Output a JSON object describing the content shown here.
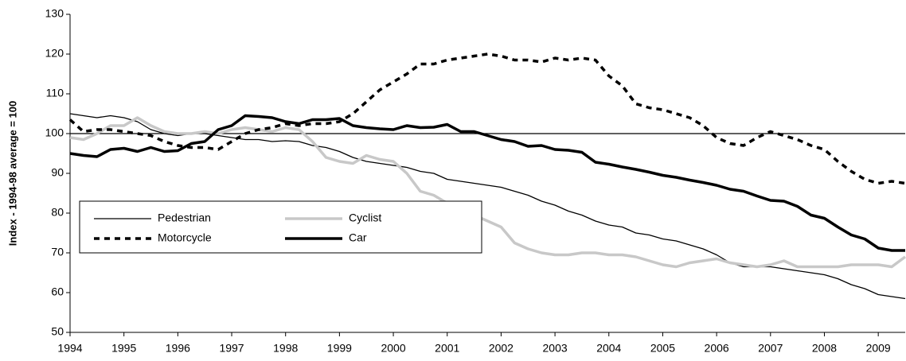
{
  "chart_data": {
    "type": "line",
    "y_label": "Index - 1994-98 average = 100",
    "x": [
      1994,
      1994.25,
      1994.5,
      1994.75,
      1995,
      1995.25,
      1995.5,
      1995.75,
      1996,
      1996.25,
      1996.5,
      1996.75,
      1997,
      1997.25,
      1997.5,
      1997.75,
      1998,
      1998.25,
      1998.5,
      1998.75,
      1999,
      1999.25,
      1999.5,
      1999.75,
      2000,
      2000.25,
      2000.5,
      2000.75,
      2001,
      2001.25,
      2001.5,
      2001.75,
      2002,
      2002.25,
      2002.5,
      2002.75,
      2003,
      2003.25,
      2003.5,
      2003.75,
      2004,
      2004.25,
      2004.5,
      2004.75,
      2005,
      2005.25,
      2005.5,
      2005.75,
      2006,
      2006.25,
      2006.5,
      2006.75,
      2007,
      2007.25,
      2007.5,
      2007.75,
      2008,
      2008.25,
      2008.5,
      2008.75,
      2009,
      2009.25,
      2009.5
    ],
    "series": [
      {
        "name": "Pedestrian",
        "color": "#000000",
        "style": "thin",
        "values": [
          105,
          104.5,
          104,
          104.5,
          104,
          103,
          101,
          100,
          99.5,
          100,
          100,
          99.5,
          99,
          98.5,
          98.5,
          98,
          98.2,
          98,
          97,
          96.5,
          95.5,
          94,
          93,
          92.5,
          92,
          91.5,
          90.5,
          90,
          88.5,
          88,
          87.5,
          87,
          86.5,
          85.5,
          84.5,
          83,
          82,
          80.5,
          79.5,
          78,
          77,
          76.5,
          75,
          74.5,
          73.5,
          73,
          72,
          71,
          69.5,
          67.5,
          66.5,
          66.5,
          66.5,
          66,
          65.5,
          65,
          64.5,
          63.5,
          62,
          61,
          59.5,
          59,
          58.5
        ]
      },
      {
        "name": "Cyclist",
        "color": "#c8c8c8",
        "style": "thick",
        "values": [
          99,
          98.5,
          100,
          102,
          102,
          104,
          102,
          100.5,
          100,
          100,
          100.5,
          100,
          101,
          101.5,
          101,
          100.5,
          101.5,
          101,
          98,
          94,
          93,
          92.5,
          94.5,
          93.5,
          93,
          90,
          85.5,
          84.5,
          82.5,
          82,
          79.5,
          78,
          76.5,
          72.5,
          71,
          70,
          69.5,
          69.5,
          70,
          70,
          69.5,
          69.5,
          69,
          68,
          67,
          66.5,
          67.5,
          68,
          68.5,
          67.5,
          67,
          66.5,
          67,
          68,
          66.5,
          66.5,
          66.5,
          66.5,
          67,
          67,
          67,
          66.5,
          69
        ]
      },
      {
        "name": "Motorcycle",
        "color": "#000000",
        "style": "dashed",
        "values": [
          103.5,
          100.5,
          101,
          101,
          100.5,
          100,
          99.5,
          98,
          97,
          96.5,
          96.5,
          96,
          98,
          100,
          101,
          101.5,
          102.5,
          102,
          102.5,
          102.5,
          103,
          105,
          108,
          111,
          113,
          115,
          117.5,
          117.5,
          118.5,
          119,
          119.5,
          120,
          119.5,
          118.5,
          118.5,
          118,
          119,
          118.5,
          119,
          118.5,
          114.5,
          112,
          107.5,
          106.5,
          106,
          105,
          104,
          102,
          99,
          97.5,
          97,
          99,
          100.5,
          99.5,
          98.5,
          97,
          96,
          93,
          90.5,
          88.5,
          87.5,
          88,
          87.5
        ]
      },
      {
        "name": "Car",
        "color": "#000000",
        "style": "thick",
        "values": [
          95,
          94.5,
          94.2,
          96,
          96.3,
          95.5,
          96.5,
          95.5,
          95.7,
          97.5,
          98,
          101,
          102,
          104.5,
          104.3,
          104,
          103,
          102.5,
          103.5,
          103.5,
          103.8,
          102,
          101.5,
          101.2,
          101,
          102,
          101.5,
          101.6,
          102.3,
          100.5,
          100.5,
          99.5,
          98.5,
          98,
          96.8,
          97,
          96,
          95.8,
          95.3,
          92.8,
          92.3,
          91.6,
          91,
          90.3,
          89.5,
          89,
          88.3,
          87.7,
          87,
          86,
          85.5,
          84.3,
          83.2,
          83,
          81.7,
          79.5,
          78.7,
          76.5,
          74.5,
          73.5,
          71.2,
          70.6,
          70.6
        ]
      }
    ],
    "reference_line": 100,
    "xlim": [
      1994,
      2009.5
    ],
    "xticks": [
      1994,
      1995,
      1996,
      1997,
      1998,
      1999,
      2000,
      2001,
      2002,
      2003,
      2004,
      2005,
      2006,
      2007,
      2008,
      2009
    ],
    "ylim": [
      50,
      130
    ],
    "yticks": [
      50,
      60,
      70,
      80,
      90,
      100,
      110,
      120,
      130
    ],
    "legend": "lower-left"
  }
}
